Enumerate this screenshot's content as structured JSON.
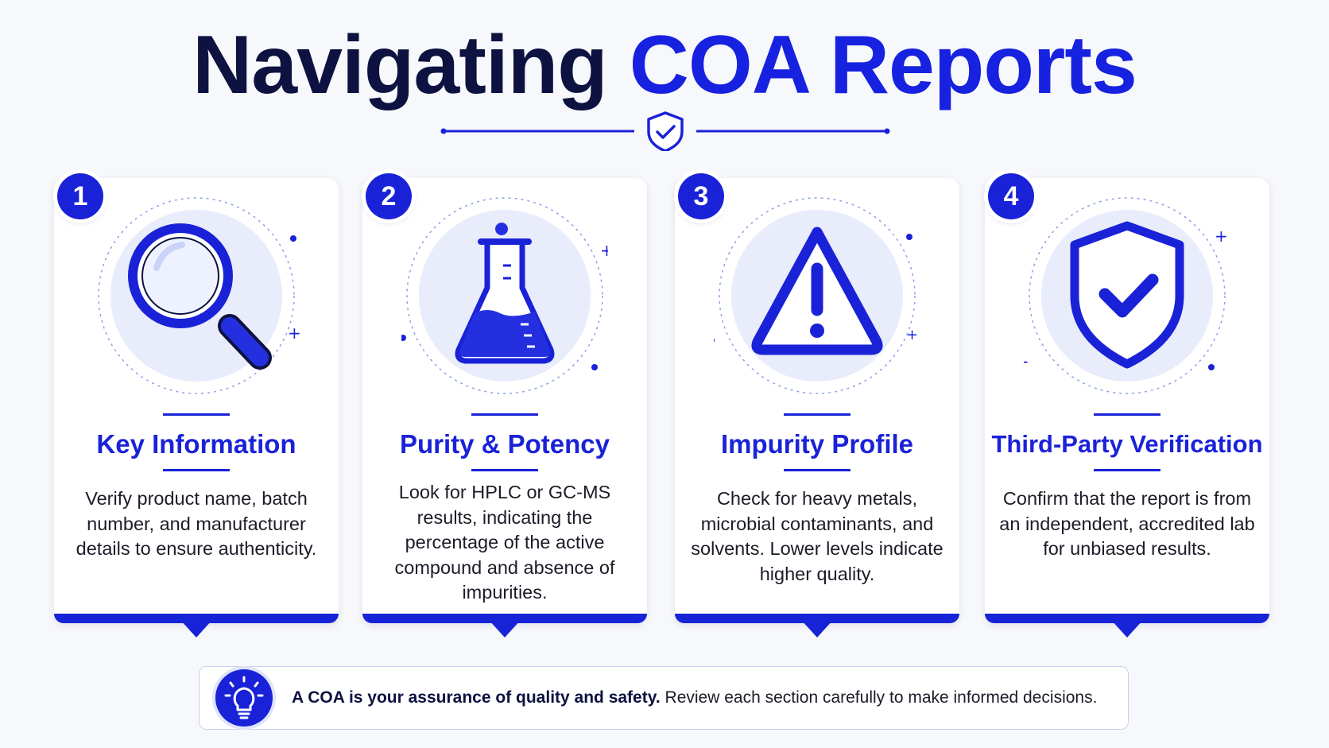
{
  "header": {
    "title_part1": "Navigating",
    "title_part2": "COA Reports",
    "divider_icon": "shield-check-icon"
  },
  "colors": {
    "accent": "#1a22d8",
    "dark": "#0d1240",
    "light_circle": "#e8ecfb"
  },
  "cards": [
    {
      "number": "1",
      "icon": "magnifying-glass-icon",
      "title": "Key Information",
      "text": "Verify product name, batch number, and manufacturer details to ensure authenticity."
    },
    {
      "number": "2",
      "icon": "lab-flask-icon",
      "title": "Purity & Potency",
      "text": "Look for HPLC or GC-MS results, indicating the percentage of the active compound and absence of impurities."
    },
    {
      "number": "3",
      "icon": "warning-triangle-icon",
      "title": "Impurity Profile",
      "text": "Check for heavy metals, microbial contaminants, and solvents. Lower levels indicate higher quality."
    },
    {
      "number": "4",
      "icon": "shield-check-icon",
      "title": "Third-Party Verification",
      "text": "Confirm that the report is from an independent, accredited lab for unbiased results."
    }
  ],
  "tip": {
    "icon": "lightbulb-icon",
    "bold": "A COA is your assurance of quality and safety.",
    "rest": " Review each section carefully to make informed decisions."
  }
}
